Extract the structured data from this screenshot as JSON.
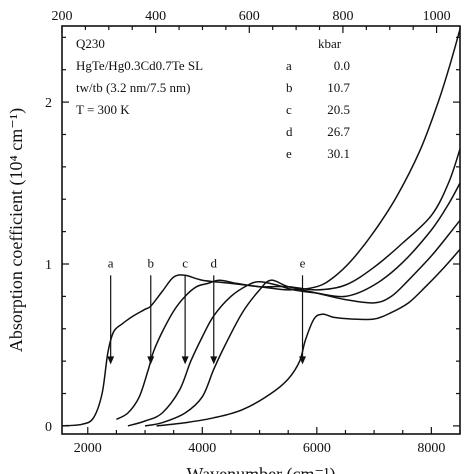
{
  "chart_data": {
    "type": "line",
    "title": "",
    "xlabel": "Wavenumber (cm⁻¹)",
    "ylabel": "Absorption coefficient (10⁴ cm⁻¹)",
    "xlim": [
      1550,
      8500
    ],
    "ylim": [
      -0.05,
      2.47
    ],
    "top_axis": {
      "min": 200,
      "max": 1050,
      "ticks": [
        "200",
        "400",
        "600",
        "800",
        "1000"
      ]
    },
    "x_ticks": [
      "2000",
      "4000",
      "6000",
      "8000"
    ],
    "y_ticks": [
      "0",
      "1",
      "2"
    ],
    "grid": false,
    "annotation_lines": [
      "Q230",
      "HgTe/Hg0.3Cd0.7Te SL",
      "tw/tb  (3.2 nm/7.5 nm)",
      "T = 300 K"
    ],
    "pressure_table": {
      "header": "kbar",
      "rows": [
        {
          "label": "a",
          "value": "0.0"
        },
        {
          "label": "b",
          "value": "10.7"
        },
        {
          "label": "c",
          "value": "20.5"
        },
        {
          "label": "d",
          "value": "26.7"
        },
        {
          "label": "e",
          "value": "30.1"
        }
      ]
    },
    "markers": [
      {
        "label": "a",
        "x": 2400,
        "y_top": 0.93,
        "y_bottom": 0.38
      },
      {
        "label": "b",
        "x": 3100,
        "y_top": 0.93,
        "y_bottom": 0.38
      },
      {
        "label": "c",
        "x": 3700,
        "y_top": 0.93,
        "y_bottom": 0.38
      },
      {
        "label": "d",
        "x": 4200,
        "y_top": 0.93,
        "y_bottom": 0.38
      },
      {
        "label": "e",
        "x": 5750,
        "y_top": 0.93,
        "y_bottom": 0.38
      }
    ],
    "series": [
      {
        "x": [
          1550,
          1900,
          2100,
          2250,
          2350,
          2450,
          2600,
          2800,
          3000,
          3100,
          3300,
          3500,
          3700,
          4000,
          4500,
          5000,
          5500,
          6000,
          6300,
          6600,
          7000,
          7400,
          7800,
          8100,
          8300,
          8500
        ],
        "y": [
          0.0,
          0.01,
          0.05,
          0.2,
          0.45,
          0.58,
          0.63,
          0.68,
          0.72,
          0.74,
          0.83,
          0.92,
          0.93,
          0.9,
          0.88,
          0.86,
          0.84,
          0.86,
          0.92,
          1.02,
          1.2,
          1.42,
          1.7,
          1.98,
          2.2,
          2.45
        ]
      },
      {
        "x": [
          2500,
          2700,
          2900,
          3050,
          3150,
          3300,
          3500,
          3700,
          3900,
          4100,
          4300,
          4600,
          5000,
          5500,
          6000,
          6500,
          7000,
          7500,
          8000,
          8300,
          8500
        ],
        "y": [
          0.04,
          0.08,
          0.18,
          0.34,
          0.46,
          0.58,
          0.71,
          0.8,
          0.86,
          0.88,
          0.9,
          0.88,
          0.86,
          0.86,
          0.84,
          0.87,
          0.98,
          1.13,
          1.3,
          1.5,
          1.71
        ]
      },
      {
        "x": [
          2700,
          3000,
          3300,
          3600,
          3800,
          4000,
          4200,
          4500,
          4800,
          5000,
          5300,
          5600,
          6000,
          6500,
          7000,
          7500,
          8000,
          8300,
          8500
        ],
        "y": [
          0.0,
          0.03,
          0.08,
          0.22,
          0.4,
          0.55,
          0.68,
          0.8,
          0.87,
          0.89,
          0.87,
          0.84,
          0.82,
          0.8,
          0.87,
          1.01,
          1.21,
          1.37,
          1.5
        ]
      },
      {
        "x": [
          3000,
          3300,
          3700,
          4000,
          4200,
          4400,
          4700,
          5000,
          5200,
          5500,
          6000,
          6500,
          7000,
          7300,
          7600,
          8000,
          8300,
          8500
        ],
        "y": [
          0.0,
          0.02,
          0.08,
          0.18,
          0.35,
          0.5,
          0.7,
          0.84,
          0.9,
          0.86,
          0.82,
          0.78,
          0.76,
          0.8,
          0.9,
          1.05,
          1.18,
          1.27
        ]
      },
      {
        "x": [
          3200,
          3700,
          4200,
          4700,
          5200,
          5500,
          5700,
          5800,
          5950,
          6100,
          6300,
          6600,
          7000,
          7300,
          7600,
          7900,
          8200,
          8500
        ],
        "y": [
          0.0,
          0.02,
          0.05,
          0.1,
          0.2,
          0.29,
          0.4,
          0.53,
          0.66,
          0.69,
          0.67,
          0.66,
          0.66,
          0.7,
          0.76,
          0.86,
          0.97,
          1.09
        ]
      }
    ]
  }
}
